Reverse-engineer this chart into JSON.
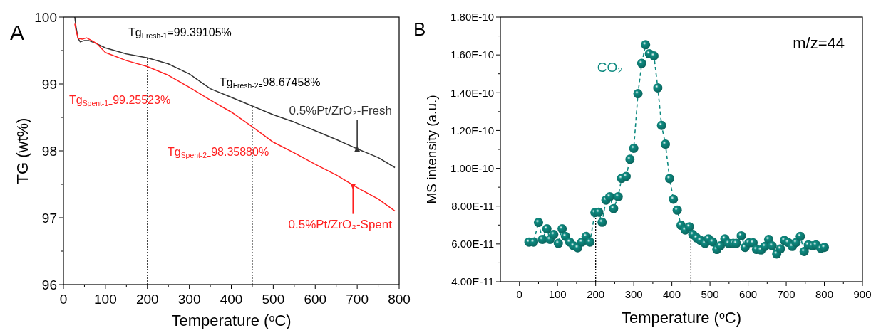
{
  "chart_data": [
    {
      "type": "line",
      "title": "A",
      "xlabel": "Temperature ($^{o}$C)",
      "ylabel": "TG (wt%)",
      "xlim": [
        0,
        800
      ],
      "ylim": [
        96,
        100
      ],
      "xticks": [
        0,
        {
          "value": 50,
          "label": null
        },
        100,
        {
          "value": 150,
          "label": null
        },
        200,
        {
          "value": 250,
          "label": null
        },
        300,
        {
          "value": 350,
          "label": null
        },
        400,
        {
          "value": 450,
          "label": null
        },
        500,
        {
          "value": 550,
          "label": null
        },
        600,
        {
          "value": 650,
          "label": null
        },
        700,
        {
          "value": 750,
          "label": null
        },
        800
      ],
      "yticks": [
        96,
        {
          "value": 96.5,
          "label": null
        },
        97,
        {
          "value": 97.5,
          "label": null
        },
        98,
        {
          "value": 98.5,
          "label": null
        },
        99,
        {
          "value": 99.5,
          "label": null
        },
        100
      ],
      "grid": false,
      "marker": "none",
      "line_style": "solid",
      "ref_lines": [
        {
          "axis": "x",
          "value": 200,
          "line_style": "dotted",
          "color": "#333333"
        },
        {
          "axis": "x",
          "value": 450,
          "line_style": "dotted",
          "color": "#333333"
        }
      ],
      "annotations": [
        "Tg$_{Fresh-1}$=99.39105%",
        "Tg$_{Fresh-2=}$98.67458%",
        "Tg$_{Spent-1=}$99.25523%",
        "Tg$_{Spent-2=}$98.35880%"
      ],
      "series": [
        {
          "name": "0.5%Pt/ZrO₂-Fresh",
          "color": "#333333",
          "x": [
            27,
            30,
            35,
            40,
            50,
            60,
            80,
            100,
            150,
            200,
            250,
            300,
            350,
            400,
            450,
            500,
            550,
            600,
            650,
            700,
            750,
            790
          ],
          "values": [
            100,
            99.85,
            99.68,
            99.63,
            99.65,
            99.65,
            99.6,
            99.54,
            99.45,
            99.39,
            99.3,
            99.15,
            98.93,
            98.8,
            98.67,
            98.54,
            98.43,
            98.3,
            98.17,
            98.03,
            97.9,
            97.75
          ]
        },
        {
          "name": "0.5%Pt/ZrO₂-Spent",
          "color": "#ff2020",
          "x": [
            27,
            30,
            35,
            45,
            55,
            70,
            80,
            100,
            150,
            200,
            250,
            300,
            350,
            400,
            450,
            500,
            550,
            600,
            650,
            700,
            750,
            790
          ],
          "values": [
            99.9,
            99.8,
            99.68,
            99.67,
            99.69,
            99.64,
            99.6,
            99.47,
            99.35,
            99.26,
            99.13,
            98.95,
            98.76,
            98.58,
            98.36,
            98.13,
            97.97,
            97.8,
            97.64,
            97.45,
            97.28,
            97.1
          ]
        }
      ]
    },
    {
      "type": "line",
      "title": "B",
      "xlabel": "Temperature ($^{o}$C)",
      "ylabel": "MS intensity (a.u.)",
      "xlim": [
        -50,
        900
      ],
      "ylim": [
        4e-11,
        1.8e-10
      ],
      "xticks": [
        0,
        {
          "value": 50,
          "label": null
        },
        100,
        {
          "value": 150,
          "label": null
        },
        200,
        {
          "value": 250,
          "label": null
        },
        300,
        {
          "value": 350,
          "label": null
        },
        400,
        {
          "value": 450,
          "label": null
        },
        500,
        {
          "value": 550,
          "label": null
        },
        600,
        {
          "value": 650,
          "label": null
        },
        700,
        {
          "value": 750,
          "label": null
        },
        800,
        {
          "value": 850,
          "label": null
        },
        900
      ],
      "yticks": [
        {
          "value": 4e-11,
          "label": "4.00E-11"
        },
        {
          "value": 5e-11,
          "label": null
        },
        {
          "value": 6e-11,
          "label": "6.00E-11"
        },
        {
          "value": 7e-11,
          "label": null
        },
        {
          "value": 8e-11,
          "label": "8.00E-11"
        },
        {
          "value": 9e-11,
          "label": null
        },
        {
          "value": 1e-10,
          "label": "1.00E-10"
        },
        {
          "value": 1.1e-10,
          "label": null
        },
        {
          "value": 1.2e-10,
          "label": "1.20E-10"
        },
        {
          "value": 1.3e-10,
          "label": null
        },
        {
          "value": 1.4e-10,
          "label": "1.40E-10"
        },
        {
          "value": 1.5e-10,
          "label": null
        },
        {
          "value": 1.6e-10,
          "label": "1.60E-10"
        },
        {
          "value": 1.7e-10,
          "label": null
        },
        {
          "value": 1.8e-10,
          "label": "1.80E-10"
        }
      ],
      "grid": false,
      "marker": "circle",
      "line_style": "dashed",
      "ref_lines": [
        {
          "axis": "x",
          "value": 200,
          "line_style": "dotted",
          "color": "#000000"
        },
        {
          "axis": "x",
          "value": 450,
          "line_style": "dotted",
          "color": "#000000"
        }
      ],
      "annotations": [
        "m/z=44"
      ],
      "series": [
        {
          "name": "CO₂",
          "color": "#0e8a80",
          "x": [
            25,
            37,
            50,
            60,
            72,
            80,
            90,
            102,
            112,
            121,
            132,
            142,
            153,
            164,
            175,
            185,
            198,
            208,
            217,
            227,
            237,
            247,
            259,
            268,
            280,
            290,
            300,
            311,
            321,
            331,
            341,
            353,
            363,
            373,
            383,
            394,
            404,
            414,
            424,
            435,
            446,
            455,
            465,
            475,
            487,
            496,
            507,
            518,
            527,
            539,
            549,
            561,
            569,
            582,
            592,
            602,
            613,
            622,
            634,
            644,
            654,
            663,
            675,
            685,
            695,
            705,
            716,
            726,
            737,
            747,
            758,
            769,
            778,
            791,
            800
          ],
          "values": [
            6.1e-11,
            6.1e-11,
            7.14e-11,
            6.24e-11,
            6.8e-11,
            6.24e-11,
            6.5e-11,
            6.03e-11,
            6.8e-11,
            6.4e-11,
            6.1e-11,
            5.9e-11,
            5.8e-11,
            6.1e-11,
            6.4e-11,
            6.1e-11,
            7.66e-11,
            7.68e-11,
            7.15e-11,
            8.32e-11,
            8.5e-11,
            7.87e-11,
            8.5e-11,
            9.47e-11,
            9.57e-11,
            1.048e-10,
            1.106e-10,
            1.395e-10,
            1.555e-10,
            1.654e-10,
            1.606e-10,
            1.595e-10,
            1.426e-10,
            1.227e-10,
            1.128e-10,
            9.46e-11,
            8.37e-11,
            7.79e-11,
            6.99e-11,
            6.74e-11,
            6.91e-11,
            6.5e-11,
            6.32e-11,
            6.19e-11,
            6.03e-11,
            6.27e-11,
            6.11e-11,
            5.71e-11,
            5.9e-11,
            6.27e-11,
            6.03e-11,
            6.03e-11,
            6.03e-11,
            6.43e-11,
            5.82e-11,
            6.06e-11,
            6.06e-11,
            5.71e-11,
            5.68e-11,
            5.87e-11,
            6.24e-11,
            5.9e-11,
            5.47e-11,
            5.74e-11,
            6.19e-11,
            6.08e-11,
            5.87e-11,
            6.08e-11,
            6.4e-11,
            5.6e-11,
            5.95e-11,
            5.9e-11,
            5.95e-11,
            5.76e-11,
            5.82e-11
          ]
        }
      ]
    }
  ]
}
